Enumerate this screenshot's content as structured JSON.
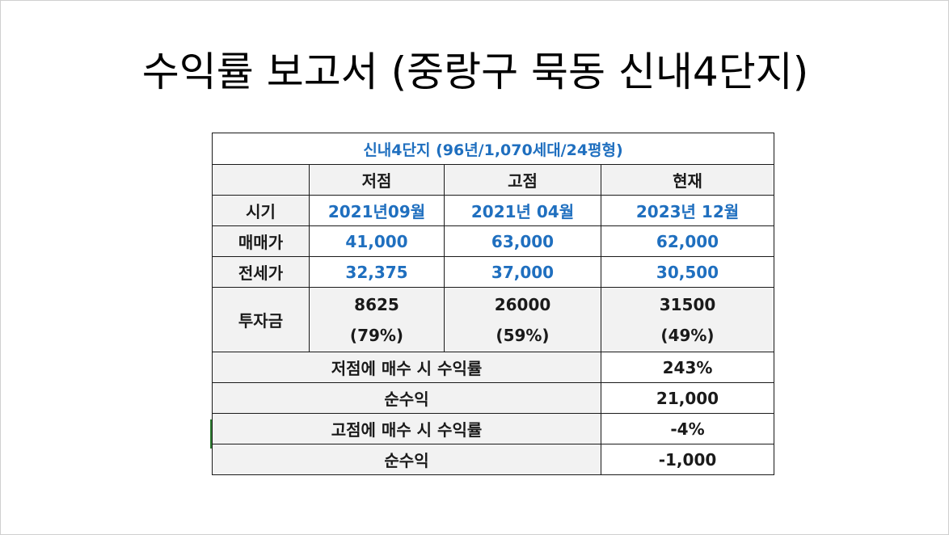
{
  "title": "수익률 보고서 (중랑구 묵동 신내4단지)",
  "table": {
    "caption": "신내4단지 (96년/1,070세대/24평형)",
    "columns": [
      "저점",
      "고점",
      "현재"
    ],
    "rows": [
      {
        "label": "시기",
        "values": [
          "2021년09월",
          "2021년 04월",
          "2023년 12월"
        ]
      },
      {
        "label": "매매가",
        "values": [
          "41,000",
          "63,000",
          "62,000"
        ]
      },
      {
        "label": "전세가",
        "values": [
          "32,375",
          "37,000",
          "30,500"
        ]
      },
      {
        "label": "투자금",
        "values": [
          {
            "amount": "8625",
            "ratio": "(79%)"
          },
          {
            "amount": "26000",
            "ratio": "(59%)"
          },
          {
            "amount": "31500",
            "ratio": "(49%)"
          }
        ]
      }
    ],
    "summary": [
      {
        "label": "저점에 매수 시 수익률",
        "value": "243%"
      },
      {
        "label": "순수익",
        "value": "21,000"
      },
      {
        "label": "고점에 매수 시 수익률",
        "value": "-4%"
      },
      {
        "label": "순수익",
        "value": "-1,000"
      }
    ]
  },
  "colors": {
    "accent_blue": "#1f6fbf",
    "cell_gray": "#f2f2f2",
    "border": "#1a1a1a"
  }
}
